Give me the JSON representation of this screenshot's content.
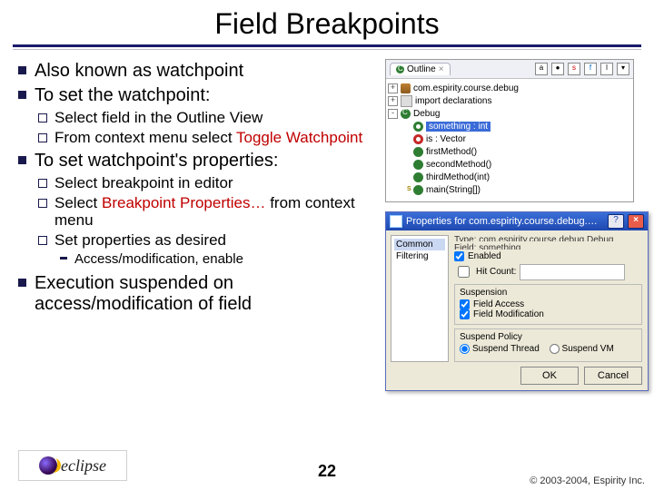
{
  "colors": {
    "rule": "#1a1a6a",
    "bullet": "#19194d",
    "highlight": "#c00000",
    "titlebar_start": "#3b6fd8",
    "titlebar_end": "#1e48b0",
    "selection": "#3a6bd8",
    "win_bg": "#ece9d8"
  },
  "slide": {
    "title": "Field Breakpoints",
    "page_number": "22",
    "footer": "© 2003-2004, Espirity Inc.",
    "logo_text": "eclipse"
  },
  "bullets": [
    {
      "text": "Also known as watchpoint"
    },
    {
      "text": "To set the watchpoint:",
      "children": [
        {
          "text": "Select field in the Outline View"
        },
        {
          "pre": "From context menu select ",
          "hl": "Toggle Watchpoint"
        }
      ]
    },
    {
      "text": "To set watchpoint's properties:",
      "children": [
        {
          "text": "Select breakpoint in editor"
        },
        {
          "pre": "Select ",
          "hl": "Breakpoint Properties…",
          "post": " from context menu"
        },
        {
          "text": "Set properties as desired",
          "children": [
            {
              "text": "Access/modification, enable"
            }
          ]
        }
      ]
    },
    {
      "text": "Execution suspended on access/modification of field"
    }
  ],
  "outline": {
    "tab_label": "Outline",
    "toolbar_icons": [
      "az-icon",
      "public-icon",
      "static-icon",
      "fields-icon",
      "local-icon",
      "menu-icon"
    ],
    "rows": [
      {
        "indent": 0,
        "tw": "+",
        "icon": "ic-pkg",
        "label": "com.espirity.course.debug"
      },
      {
        "indent": 0,
        "tw": "+",
        "icon": "ic-imp",
        "label": "import declarations"
      },
      {
        "indent": 0,
        "tw": "-",
        "icon": "ic-cls",
        "label": "Debug"
      },
      {
        "indent": 1,
        "tw": "",
        "icon": "ic-fld",
        "label": "something : int",
        "selected": true,
        "red": false
      },
      {
        "indent": 1,
        "tw": "",
        "icon": "ic-fld red",
        "label": "is : Vector"
      },
      {
        "indent": 1,
        "tw": "",
        "icon": "ic-mth",
        "label": "firstMethod()"
      },
      {
        "indent": 1,
        "tw": "",
        "icon": "ic-mth",
        "label": "secondMethod()"
      },
      {
        "indent": 1,
        "tw": "",
        "icon": "ic-mth",
        "label": "thirdMethod(int)"
      },
      {
        "indent": 1,
        "tw": "",
        "icon": "ic-main",
        "label": "main(String[])"
      }
    ]
  },
  "props": {
    "title": "Properties for com.espirity.course.debug.Debug - somet…",
    "nav": [
      {
        "label": "Common",
        "selected": true
      },
      {
        "label": "Filtering",
        "selected": false
      }
    ],
    "type_line": "Type: com.espirity.course.debug.Debug",
    "field_line": "Field: something",
    "enabled_label": "Enabled",
    "enabled": true,
    "hitcount_label": "Hit Count:",
    "hitcount_checked": false,
    "hitcount_value": "",
    "suspension_group": "Suspension",
    "field_access_label": "Field Access",
    "field_access": true,
    "field_mod_label": "Field Modification",
    "field_mod": true,
    "policy_group": "Suspend Policy",
    "policy_thread_label": "Suspend Thread",
    "policy_vm_label": "Suspend VM",
    "policy": "thread",
    "ok_label": "OK",
    "cancel_label": "Cancel"
  }
}
